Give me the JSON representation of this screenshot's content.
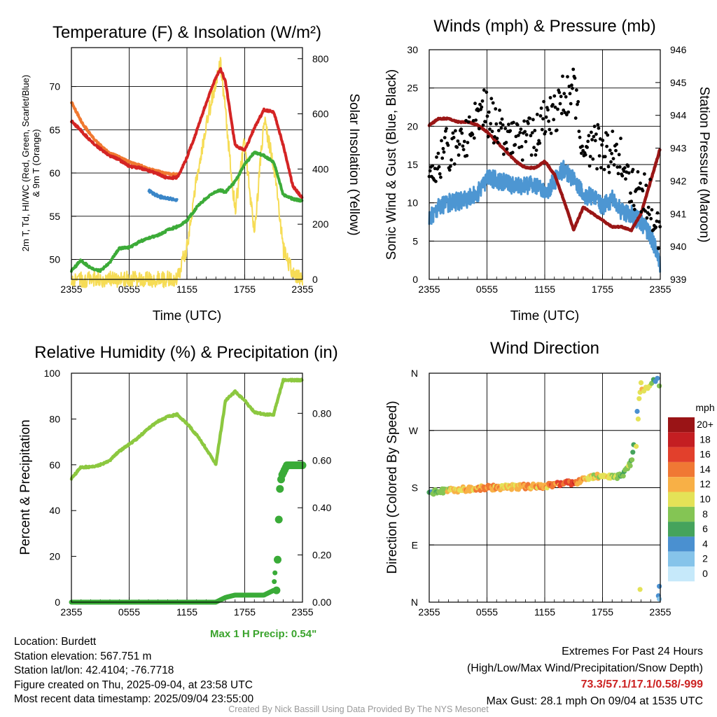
{
  "colors": {
    "red": "#d42424",
    "green": "#3cab38",
    "orange": "#f07830",
    "blue": "#3a86c8",
    "yellow": "#f6dc56",
    "maroon": "#9a1616",
    "wind": "#4d96d2",
    "gust": "#000000",
    "rh": "#8cc840",
    "precip": "#3aab38"
  },
  "panels": {
    "temp": {
      "title": "Temperature (F) & Insolation (W/m²)",
      "ylabel_lines": [
        "2m T, Td, HI/WC (Red, Green, Scarlet/Blue)",
        "& 9m T (Orange)"
      ],
      "y2label": "Solar Insolation (Yellow)",
      "xlabel": "Time (UTC)",
      "yticks": [
        "50",
        "55",
        "60",
        "65",
        "70"
      ],
      "y2ticks": [
        "0",
        "200",
        "400",
        "600",
        "800"
      ],
      "xticks": [
        "2355",
        "0555",
        "1155",
        "1755",
        "2355"
      ]
    },
    "wind": {
      "title": "Winds (mph) & Pressure (mb)",
      "ylabel": "Sonic Wind & Gust (Blue, Black)",
      "y2label": "Station Pressure (Maroon)",
      "xlabel": "Time (UTC)",
      "yticks": [
        "0",
        "5",
        "10",
        "15",
        "20",
        "25",
        "30"
      ],
      "y2ticks": [
        "939",
        "940",
        "941",
        "942",
        "943",
        "944",
        "945",
        "946"
      ],
      "xticks": [
        "2355",
        "0555",
        "1155",
        "1755",
        "2355"
      ]
    },
    "rh": {
      "title": "Relative Humidity (%) & Precipitation (in)",
      "ylabel": "Percent & Precipitation",
      "yticks": [
        "0",
        "20",
        "40",
        "60",
        "80",
        "100"
      ],
      "y2ticks": [
        "0.00",
        "0.20",
        "0.40",
        "0.60",
        "0.80"
      ],
      "xticks": [
        "2355",
        "0555",
        "1155",
        "1755",
        "2355"
      ],
      "max_precip": "Max 1 H Precip: 0.54\""
    },
    "dir": {
      "title": "Wind Direction",
      "ylabel": "Direction (Colored By Speed)",
      "yticks": [
        "N",
        "E",
        "S",
        "W",
        "N"
      ],
      "xticks": [
        "2355",
        "0555",
        "1155",
        "1755",
        "2355"
      ],
      "legend_title": "mph",
      "legend_labels": [
        "0",
        "2",
        "4",
        "6",
        "8",
        "10",
        "12",
        "14",
        "16",
        "18",
        "20+"
      ],
      "legend_colors": [
        "#c6e9fa",
        "#86c4ea",
        "#4a90d0",
        "#45a35c",
        "#84c554",
        "#e4e257",
        "#f8b046",
        "#f07834",
        "#e2402c",
        "#c41e22",
        "#9a1416"
      ]
    }
  },
  "info": {
    "location": "Location: Burdett",
    "elevation": "Station elevation: 567.751 m",
    "latlon": "Station lat/lon: 42.4104; -76.7718",
    "created": "Figure created on Thu, 2025-09-04, at 23:58 UTC",
    "recent": "Most recent data timestamp: 2025/09/04 23:55:00"
  },
  "extremes": {
    "heading": "Extremes For Past 24 Hours",
    "sub": "(High/Low/Max Wind/Precipitation/Snow Depth)",
    "values": "73.3/57.1/17.1/0.58/-999",
    "gust": "Max Gust: 28.1 mph On 09/04 at 1535 UTC"
  },
  "credit": "Created By Nick Bassill Using Data Provided By The NYS Mesonet",
  "chart_data": [
    {
      "type": "line",
      "title": "Temperature (F) & Insolation (W/m²)",
      "xlabel": "Time (UTC)",
      "ylabel": "2m T, Td, HI/WC (Red, Green, Scarlet/Blue) & 9m T (Orange)",
      "y2label": "Solar Insolation (Yellow)",
      "ylim": [
        47.7,
        74.5
      ],
      "y2lim": [
        0,
        840
      ],
      "x_hours": [
        0,
        1,
        2,
        3,
        4,
        5,
        6,
        7,
        8,
        9,
        10,
        11,
        12,
        13,
        14,
        15,
        15.5,
        16,
        17,
        18,
        19,
        20,
        21,
        22,
        23,
        24
      ],
      "series": [
        {
          "name": "2m T",
          "color": "red",
          "axis": "left",
          "values": [
            66.0,
            64.9,
            63.7,
            62.8,
            62.0,
            61.5,
            60.8,
            60.6,
            60.3,
            59.9,
            59.4,
            59.5,
            61.8,
            64.8,
            68.1,
            71.0,
            72.0,
            70.6,
            63.2,
            62.6,
            65.2,
            67.3,
            67.1,
            63.2,
            58.5,
            57.1
          ]
        },
        {
          "name": "Td",
          "color": "green",
          "axis": "left",
          "values": [
            48.7,
            49.9,
            49.0,
            48.7,
            49.7,
            51.3,
            51.4,
            52.0,
            52.5,
            52.8,
            53.4,
            53.8,
            54.5,
            56.0,
            57.1,
            57.8,
            58.0,
            57.8,
            59.0,
            61.0,
            62.4,
            62.0,
            61.3,
            57.5,
            57.0,
            56.8
          ]
        },
        {
          "name": "9m T",
          "color": "orange",
          "axis": "left",
          "values": [
            68.2,
            66.0,
            64.4,
            63.2,
            62.3,
            61.8,
            61.3,
            60.9,
            60.5,
            60.2,
            59.9,
            59.8,
            null,
            null,
            null,
            null,
            null,
            null,
            null,
            null,
            null,
            null,
            null,
            null,
            null,
            null
          ]
        },
        {
          "name": "WC",
          "color": "blue",
          "axis": "left",
          "values": [
            null,
            null,
            null,
            null,
            null,
            null,
            null,
            null,
            58.0,
            57.3,
            57.1,
            56.9,
            null,
            null,
            null,
            null,
            null,
            null,
            null,
            null,
            null,
            null,
            null,
            null,
            null,
            56.8
          ]
        },
        {
          "name": "Solar Insolation",
          "color": "yellow",
          "axis": "right",
          "values": [
            0,
            0,
            0,
            0,
            0,
            0,
            0,
            0,
            0,
            0,
            0,
            0,
            120,
            360,
            560,
            720,
            780,
            610,
            250,
            500,
            160,
            580,
            420,
            110,
            20,
            0
          ]
        }
      ]
    },
    {
      "type": "line",
      "title": "Winds (mph) & Pressure (mb)",
      "xlabel": "Time (UTC)",
      "ylabel": "Sonic Wind & Gust (Blue, Black)",
      "y2label": "Station Pressure (Maroon)",
      "ylim": [
        0,
        30
      ],
      "y2lim": [
        939,
        946
      ],
      "x_hours": [
        0,
        1,
        2,
        3,
        4,
        5,
        6,
        7,
        8,
        9,
        10,
        11,
        12,
        13,
        14,
        15,
        16,
        17,
        18,
        19,
        20,
        21,
        22,
        23,
        24
      ],
      "series": [
        {
          "name": "Sonic Wind",
          "color": "wind",
          "axis": "left",
          "values": [
            8.0,
            9.5,
            10.0,
            10.2,
            10.5,
            11.2,
            13.2,
            13.0,
            12.6,
            12.1,
            12.2,
            12.5,
            11.2,
            12.8,
            14.5,
            13.0,
            11.0,
            10.8,
            9.6,
            10.5,
            8.8,
            8.5,
            7.5,
            5.8,
            2.0
          ]
        },
        {
          "name": "Gust",
          "color": "gust",
          "axis": "left",
          "values": [
            12.0,
            15.8,
            17.0,
            18.0,
            19.2,
            22.0,
            21.8,
            20.2,
            19.0,
            18.5,
            18.2,
            18.8,
            20.5,
            21.5,
            24.0,
            25.5,
            17.5,
            17.0,
            17.5,
            16.5,
            15.5,
            12.5,
            11.0,
            10.5,
            4.0
          ]
        },
        {
          "name": "Station Pressure",
          "color": "maroon",
          "axis": "right",
          "values": [
            943.7,
            943.9,
            943.9,
            943.8,
            943.8,
            943.7,
            943.5,
            943.2,
            942.9,
            942.6,
            942.4,
            942.4,
            942.6,
            942.2,
            941.4,
            940.5,
            941.2,
            941.0,
            940.8,
            940.6,
            940.6,
            940.5,
            941.0,
            942.0,
            943.0
          ]
        }
      ]
    },
    {
      "type": "line",
      "title": "Relative Humidity (%) & Precipitation (in)",
      "ylabel": "Percent & Precipitation",
      "ylim": [
        0,
        100
      ],
      "y2lim": [
        0,
        0.97
      ],
      "x_hours": [
        0,
        1,
        2,
        3,
        4,
        5,
        6,
        7,
        8,
        9,
        10,
        11,
        12,
        13,
        14,
        15,
        16,
        17,
        18,
        19,
        20,
        21,
        22,
        23,
        24
      ],
      "series": [
        {
          "name": "RH",
          "color": "rh",
          "axis": "left",
          "values": [
            54,
            59,
            59,
            60,
            62,
            66,
            69,
            72,
            76,
            79,
            81,
            82,
            78,
            73,
            67,
            60,
            88,
            92,
            88,
            83,
            82,
            82,
            97,
            97,
            97
          ]
        },
        {
          "name": "Precipitation",
          "color": "precip",
          "axis": "right",
          "values": [
            0,
            0,
            0,
            0,
            0,
            0,
            0,
            0,
            0,
            0,
            0,
            0,
            0,
            0,
            0,
            0,
            0.02,
            0.03,
            0.03,
            0.03,
            0.03,
            0.05,
            0.58,
            0.58,
            0.58
          ]
        }
      ]
    },
    {
      "type": "scatter",
      "title": "Wind Direction",
      "ylabel": "Direction (Colored By Speed)",
      "yticks": [
        "N",
        "E",
        "S",
        "W",
        "N"
      ],
      "ylim": [
        0,
        360
      ],
      "x_hours": [
        0,
        1,
        2,
        3,
        4,
        5,
        6,
        7,
        8,
        9,
        10,
        11,
        12,
        13,
        14,
        15,
        16,
        17,
        18,
        19,
        20,
        21,
        22,
        23,
        24
      ],
      "series": [
        {
          "name": "Direction",
          "color_by": "speed",
          "values": [
            170,
            175,
            176,
            177,
            178,
            179,
            180,
            180,
            181,
            181,
            182,
            182,
            183,
            185,
            186,
            188,
            192,
            198,
            197,
            196,
            198,
            220,
            330,
            340,
            345
          ]
        },
        {
          "name": "Speed",
          "values": [
            6,
            8,
            10,
            11,
            12,
            12,
            13,
            12,
            12,
            11,
            12,
            13,
            12,
            14,
            15,
            16,
            12,
            10,
            11,
            10,
            8,
            7,
            6,
            5,
            3
          ]
        }
      ]
    }
  ]
}
